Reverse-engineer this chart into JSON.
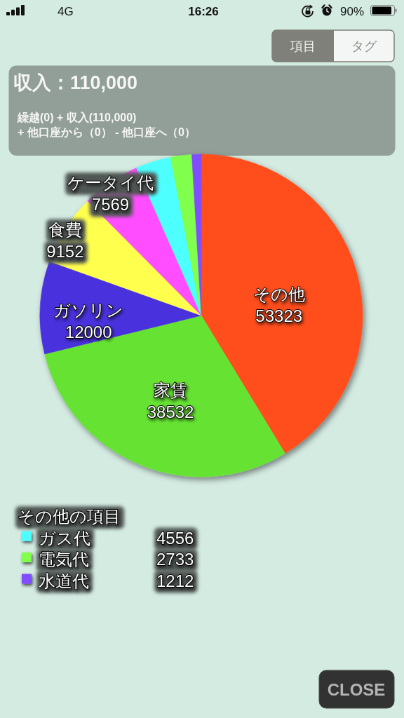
{
  "chart_data": {
    "type": "pie",
    "title": "収入：110,000",
    "subtitle": "繰越(0) + 収入(110,000)\n+ 他口座から（0） - 他口座へ（0）",
    "categories": [
      "その他",
      "家賃",
      "ガソリン",
      "食費",
      "ケータイ代",
      "ガス代",
      "電気代",
      "水道代"
    ],
    "values": [
      53323,
      38532,
      12000,
      9152,
      7569,
      4556,
      2733,
      1212
    ],
    "colors": [
      "#ff4e1a",
      "#66e333",
      "#4a33dd",
      "#ffff4d",
      "#ff4dff",
      "#4dffff",
      "#80ff4d",
      "#804dff"
    ],
    "data_labels": true,
    "legend": "bottom left",
    "legend_title": "その他の項目",
    "annotations": [
      "4G",
      "16:26",
      "90%",
      "項目",
      "タグ",
      "CLOSE"
    ]
  }
}
